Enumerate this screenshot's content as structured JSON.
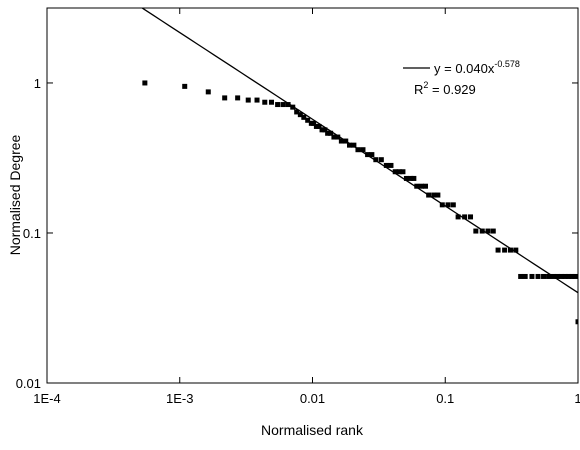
{
  "chart_data": {
    "type": "scatter",
    "x_label": "Normalised rank",
    "y_label": "Normalised Degree",
    "log_x": true,
    "log_y": true,
    "xlim": [
      0.0001,
      1
    ],
    "ylim": [
      0.01,
      3.16
    ],
    "xticks": [
      {
        "value": 0.0001,
        "label": "1E-4"
      },
      {
        "value": 0.001,
        "label": "1E-3"
      },
      0.01,
      0.1,
      1
    ],
    "yticks": [
      0.01,
      0.1,
      1
    ],
    "series": [
      {
        "name": "data",
        "color": "#000000",
        "x": [
          0.000546,
          0.00109,
          0.00164,
          0.00218,
          0.00273,
          0.00328,
          0.00382,
          0.00437,
          0.00491,
          0.00546,
          0.006,
          0.00655,
          0.0071,
          0.0076,
          0.0081,
          0.0086,
          0.0092,
          0.0098,
          0.0102,
          0.0107,
          0.0112,
          0.0118,
          0.0124,
          0.013,
          0.0137,
          0.0145,
          0.0155,
          0.0165,
          0.0178,
          0.019,
          0.0205,
          0.022,
          0.024,
          0.026,
          0.028,
          0.03,
          0.033,
          0.036,
          0.039,
          0.042,
          0.045,
          0.048,
          0.051,
          0.055,
          0.058,
          0.061,
          0.066,
          0.071,
          0.075,
          0.082,
          0.088,
          0.095,
          0.105,
          0.115,
          0.125,
          0.14,
          0.155,
          0.17,
          0.19,
          0.21,
          0.23,
          0.25,
          0.28,
          0.31,
          0.34,
          0.37,
          0.4,
          0.45,
          0.5,
          0.55,
          0.6,
          0.65,
          0.7,
          0.75,
          0.8,
          0.85,
          0.9,
          0.95,
          1.0
        ],
        "values": [
          1.0,
          0.949,
          0.872,
          0.795,
          0.795,
          0.769,
          0.769,
          0.744,
          0.744,
          0.718,
          0.718,
          0.718,
          0.69,
          0.641,
          0.615,
          0.59,
          0.564,
          0.538,
          0.538,
          0.513,
          0.513,
          0.487,
          0.487,
          0.462,
          0.462,
          0.436,
          0.436,
          0.41,
          0.41,
          0.385,
          0.385,
          0.359,
          0.359,
          0.333,
          0.333,
          0.308,
          0.308,
          0.282,
          0.282,
          0.256,
          0.256,
          0.256,
          0.231,
          0.231,
          0.231,
          0.205,
          0.205,
          0.205,
          0.179,
          0.179,
          0.179,
          0.154,
          0.154,
          0.154,
          0.128,
          0.128,
          0.128,
          0.103,
          0.103,
          0.103,
          0.103,
          0.0769,
          0.0769,
          0.0769,
          0.0769,
          0.0513,
          0.0513,
          0.0513,
          0.0513,
          0.0513,
          0.0513,
          0.0513,
          0.0513,
          0.0513,
          0.0513,
          0.0513,
          0.0513,
          0.0513,
          0.0256
        ]
      }
    ],
    "fit": {
      "coef": 0.04,
      "exponent": -0.578,
      "color": "#000000",
      "equation": "y = 0.040x",
      "equation_exponent": "-0.578",
      "r2_symbol": "R",
      "r2_power": "2",
      "r2_text": " = 0.929"
    }
  }
}
